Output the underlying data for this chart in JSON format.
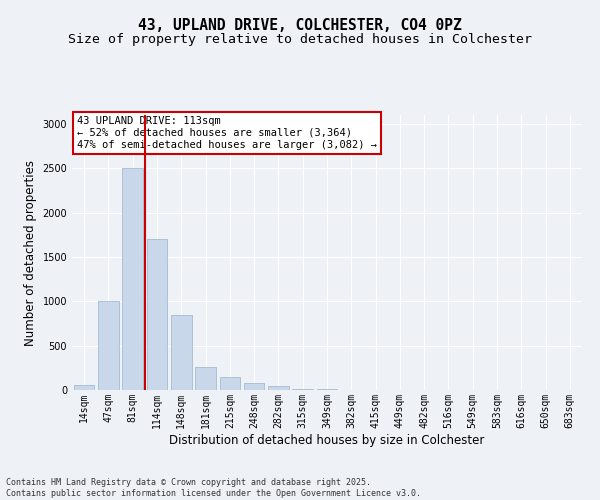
{
  "title_line1": "43, UPLAND DRIVE, COLCHESTER, CO4 0PZ",
  "title_line2": "Size of property relative to detached houses in Colchester",
  "xlabel": "Distribution of detached houses by size in Colchester",
  "ylabel": "Number of detached properties",
  "bar_labels": [
    "14sqm",
    "47sqm",
    "81sqm",
    "114sqm",
    "148sqm",
    "181sqm",
    "215sqm",
    "248sqm",
    "282sqm",
    "315sqm",
    "349sqm",
    "382sqm",
    "415sqm",
    "449sqm",
    "482sqm",
    "516sqm",
    "549sqm",
    "583sqm",
    "616sqm",
    "650sqm",
    "683sqm"
  ],
  "bar_values": [
    60,
    1000,
    2500,
    1700,
    850,
    260,
    150,
    80,
    40,
    12,
    8,
    4,
    2,
    1,
    1,
    0,
    0,
    0,
    0,
    0,
    0
  ],
  "bar_color": "#c8d8ea",
  "bar_edgecolor": "#9ab4cc",
  "vline_x_index": 3,
  "vline_color": "#cc0000",
  "annotation_text": "43 UPLAND DRIVE: 113sqm\n← 52% of detached houses are smaller (3,364)\n47% of semi-detached houses are larger (3,082) →",
  "annotation_box_facecolor": "#ffffff",
  "annotation_box_edgecolor": "#cc0000",
  "ylim": [
    0,
    3100
  ],
  "yticks": [
    0,
    500,
    1000,
    1500,
    2000,
    2500,
    3000
  ],
  "background_color": "#eef2f7",
  "grid_color": "#ffffff",
  "footer_text": "Contains HM Land Registry data © Crown copyright and database right 2025.\nContains public sector information licensed under the Open Government Licence v3.0.",
  "title_fontsize": 10.5,
  "subtitle_fontsize": 9.5,
  "tick_fontsize": 7,
  "ylabel_fontsize": 8.5,
  "xlabel_fontsize": 8.5,
  "annotation_fontsize": 7.5,
  "footer_fontsize": 6
}
